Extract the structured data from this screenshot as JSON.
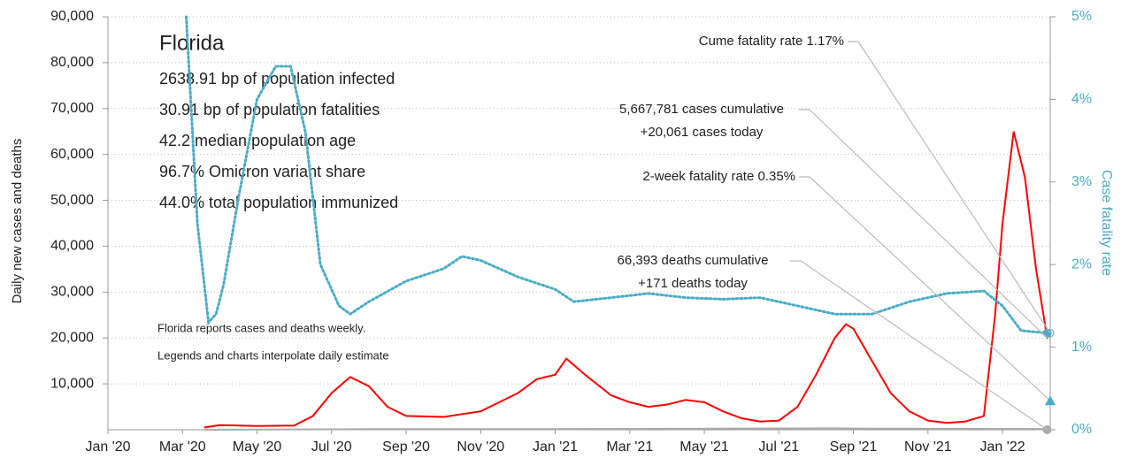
{
  "chart_data": {
    "type": "line",
    "info": {
      "title": "Florida",
      "lines": [
        "2638.91 bp of population infected",
        "30.91 bp of population fatalities",
        "42.2 median population age",
        "96.7% Omicron variant share",
        "44.0% total population immunized"
      ],
      "notes": [
        "Florida reports cases and deaths weekly.",
        "Legends and charts interpolate daily estimate"
      ]
    },
    "ylabel": "Daily new cases and deaths",
    "y2label": "Case fatality rate",
    "xlim": [
      0,
      25.28
    ],
    "xticks": [
      {
        "value": 0,
        "label": "Jan '20"
      },
      {
        "value": 2,
        "label": "Mar '20"
      },
      {
        "value": 4,
        "label": "May '20"
      },
      {
        "value": 6,
        "label": "Jul '20"
      },
      {
        "value": 8,
        "label": "Sep '20"
      },
      {
        "value": 10,
        "label": "Nov '20"
      },
      {
        "value": 12,
        "label": "Jan '21"
      },
      {
        "value": 14,
        "label": "Mar '21"
      },
      {
        "value": 16,
        "label": "May '21"
      },
      {
        "value": 18,
        "label": "Jul '21"
      },
      {
        "value": 20,
        "label": "Sep '21"
      },
      {
        "value": 22,
        "label": "Nov '21"
      },
      {
        "value": 24,
        "label": "Jan '22"
      }
    ],
    "ylim": [
      0,
      90000
    ],
    "yticks": [
      {
        "value": 10000,
        "label": "10,000"
      },
      {
        "value": 20000,
        "label": "20,000"
      },
      {
        "value": 30000,
        "label": "30,000"
      },
      {
        "value": 40000,
        "label": "40,000"
      },
      {
        "value": 50000,
        "label": "50,000"
      },
      {
        "value": 60000,
        "label": "60,000"
      },
      {
        "value": 70000,
        "label": "70,000"
      },
      {
        "value": 80000,
        "label": "80,000"
      },
      {
        "value": 90000,
        "label": "90,000"
      }
    ],
    "y2lim": [
      0,
      5
    ],
    "y2ticks": [
      {
        "value": 0,
        "label": "0%"
      },
      {
        "value": 1,
        "label": "1%"
      },
      {
        "value": 2,
        "label": "2%"
      },
      {
        "value": 3,
        "label": "3%"
      },
      {
        "value": 4,
        "label": "4%"
      },
      {
        "value": 5,
        "label": "5%"
      }
    ],
    "grid": true,
    "series": [
      {
        "name": "Daily new cases",
        "color": "#ff0000",
        "x": [
          2.6,
          3,
          4,
          5,
          5.5,
          6,
          6.5,
          7,
          7.5,
          8,
          9,
          10,
          10.5,
          11,
          11.5,
          12,
          12.3,
          12.8,
          13.5,
          14,
          14.5,
          15,
          15.5,
          16,
          16.5,
          17,
          17.5,
          18,
          18.5,
          19,
          19.5,
          19.8,
          20,
          20.5,
          21,
          21.5,
          22,
          22.5,
          23,
          23.5,
          23.8,
          24,
          24.3,
          24.6,
          24.9,
          25.2
        ],
        "values": [
          500,
          1000,
          800,
          900,
          3000,
          8000,
          11500,
          9500,
          5000,
          3000,
          2800,
          4000,
          6000,
          8000,
          11000,
          12000,
          15500,
          12000,
          7500,
          6000,
          5000,
          5500,
          6500,
          6000,
          4000,
          2500,
          1800,
          2000,
          5000,
          12000,
          20000,
          23000,
          22000,
          15000,
          8000,
          4000,
          2000,
          1500,
          1800,
          3000,
          25000,
          45000,
          65000,
          55000,
          35000,
          20000
        ]
      },
      {
        "name": "Daily deaths",
        "color": "#aaaaaa",
        "x": [
          2.6,
          6,
          7,
          12,
          19.5,
          20.5,
          24.5,
          25.2
        ],
        "values": [
          0,
          100,
          150,
          150,
          300,
          250,
          200,
          171
        ]
      },
      {
        "name": "Case fatality rate",
        "color": "#4bacc6",
        "axis": "y2",
        "x": [
          2.1,
          2.4,
          2.7,
          2.9,
          3.1,
          3.5,
          4,
          4.5,
          4.9,
          5.3,
          5.7,
          6.2,
          6.5,
          7,
          8,
          9,
          9.5,
          10,
          11,
          12,
          12.5,
          13.5,
          14.5,
          15.5,
          16.5,
          17.5,
          18.5,
          19.5,
          20.5,
          21.5,
          22.5,
          23.5,
          24,
          24.5,
          25.2
        ],
        "values": [
          5,
          2.5,
          1.3,
          1.4,
          1.75,
          2.8,
          4.0,
          4.4,
          4.4,
          3.6,
          2.0,
          1.5,
          1.4,
          1.55,
          1.8,
          1.95,
          2.1,
          2.05,
          1.85,
          1.7,
          1.55,
          1.6,
          1.65,
          1.6,
          1.58,
          1.6,
          1.5,
          1.4,
          1.4,
          1.55,
          1.65,
          1.68,
          1.5,
          1.2,
          1.17
        ]
      }
    ],
    "annotations": [
      {
        "text": [
          "Cume fatality rate 1.17%"
        ],
        "value": 1.17
      },
      {
        "text": [
          "5,667,781 cases cumulative",
          "+20,061 cases today"
        ]
      },
      {
        "text": [
          "2-week fatality rate 0.35%"
        ],
        "value": 0.35
      },
      {
        "text": [
          "66,393 deaths cumulative",
          "+171 deaths today"
        ]
      }
    ]
  }
}
